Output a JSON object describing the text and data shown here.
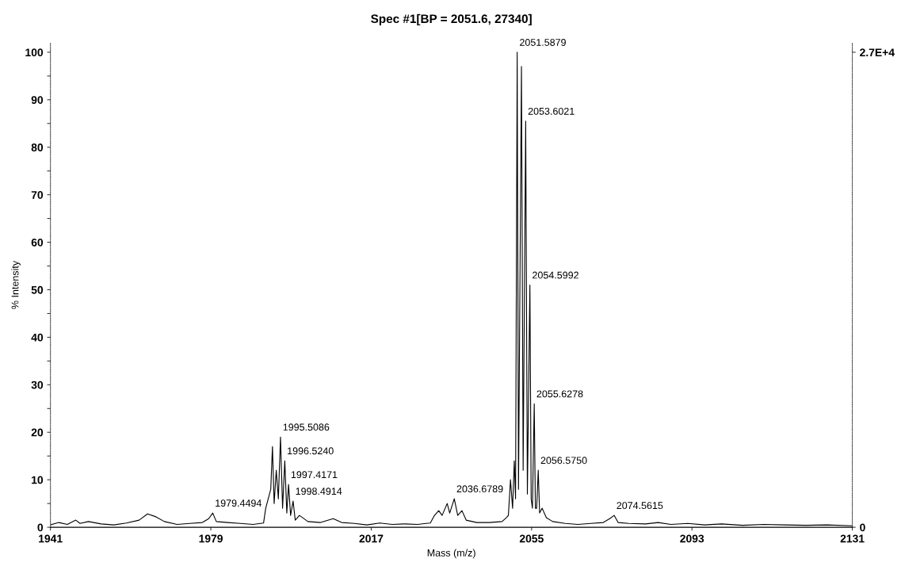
{
  "chart_data": {
    "type": "line",
    "title": "Spec #1[BP = 2051.6, 27340]",
    "xlabel": "Mass (m/z)",
    "ylabel": "% Intensity",
    "xlim": [
      1941,
      2131
    ],
    "xticks": [
      1941,
      1979,
      2017,
      2055,
      2093,
      2131
    ],
    "ylim": [
      0,
      102
    ],
    "yticks": [
      0,
      {
        "value": 5,
        "label": null
      },
      10,
      {
        "value": 15,
        "label": null
      },
      20,
      {
        "value": 25,
        "label": null
      },
      30,
      {
        "value": 35,
        "label": null
      },
      40,
      {
        "value": 45,
        "label": null
      },
      50,
      {
        "value": 55,
        "label": null
      },
      60,
      {
        "value": 65,
        "label": null
      },
      70,
      {
        "value": 75,
        "label": null
      },
      80,
      {
        "value": 85,
        "label": null
      },
      90,
      {
        "value": 95,
        "label": null
      },
      100
    ],
    "y2lim": [
      0,
      27887
    ],
    "y2ticks": [
      0,
      {
        "value": 27340,
        "label": "2.7E+4"
      }
    ],
    "grid": false,
    "marker": "none",
    "line_style": "solid",
    "series": [
      {
        "color": "#000000",
        "x": [
          1941,
          1943,
          1945,
          1947,
          1948,
          1950,
          1953,
          1956,
          1959,
          1962,
          1964,
          1966,
          1968,
          1971,
          1974,
          1977,
          1978.5,
          1979.4494,
          1980.3,
          1983,
          1986,
          1989,
          1991.5,
          1992,
          1993.2,
          1993.6,
          1994.0,
          1994.5,
          1995.0,
          1995.5086,
          1996.0,
          1996.524,
          1997.0,
          1997.4171,
          1997.9,
          1998.4914,
          1999,
          2000,
          2002,
          2005,
          2008,
          2010,
          2013,
          2016,
          2019,
          2022,
          2025,
          2028,
          2030,
          2031,
          2032,
          2033,
          2033.8,
          2035,
          2035.6,
          2036.6789,
          2037.5,
          2038.5,
          2039.5,
          2042,
          2045,
          2048,
          2049,
          2049.5,
          2050,
          2050.5,
          2050.9,
          2051.2,
          2051.5879,
          2051.9,
          2052.6,
          2053.0,
          2053.6021,
          2054.0,
          2054.5992,
          2054.9,
          2055.2,
          2055.6278,
          2055.9,
          2056.2,
          2056.575,
          2056.9,
          2057.5,
          2058.5,
          2060,
          2063,
          2066,
          2069,
          2072,
          2073.5,
          2074.5615,
          2075.5,
          2078,
          2082,
          2085,
          2088,
          2092,
          2096,
          2100,
          2105,
          2110,
          2115,
          2120,
          2125,
          2131
        ],
        "values": [
          0.5,
          1.0,
          0.6,
          1.5,
          0.8,
          1.2,
          0.7,
          0.5,
          0.9,
          1.5,
          2.8,
          2.2,
          1.2,
          0.6,
          0.8,
          1.0,
          1.8,
          3.0,
          1.2,
          1.0,
          0.8,
          0.6,
          0.9,
          4,
          8,
          17,
          5,
          12,
          6,
          19,
          4,
          14,
          3,
          9,
          2.5,
          5.5,
          1.5,
          2.5,
          1.2,
          1.0,
          1.8,
          1.0,
          0.8,
          0.5,
          0.9,
          0.6,
          0.7,
          0.6,
          0.8,
          0.9,
          2.5,
          3.5,
          2.5,
          5,
          3,
          6,
          2.5,
          3.5,
          1.5,
          1.0,
          1.0,
          1.2,
          2.0,
          2.5,
          10,
          4,
          14,
          6,
          100,
          8,
          97,
          12,
          85.5,
          7,
          51,
          6,
          4,
          26,
          4,
          4,
          12,
          3,
          4,
          2,
          1.2,
          0.8,
          0.6,
          0.8,
          1.0,
          1.8,
          2.5,
          1.0,
          0.8,
          0.7,
          1.0,
          0.6,
          0.8,
          0.5,
          0.7,
          0.4,
          0.6,
          0.5,
          0.4,
          0.5,
          0.3
        ]
      }
    ],
    "annotations": [
      {
        "text": "1979.4494",
        "x": 1979.4494,
        "y": 3.0
      },
      {
        "text": "1995.5086",
        "x": 1995.5086,
        "y": 19
      },
      {
        "text": "1996.5240",
        "x": 1996.524,
        "y": 14
      },
      {
        "text": "1997.4171",
        "x": 1997.4171,
        "y": 9
      },
      {
        "text": "1998.4914",
        "x": 1998.4914,
        "y": 5.5
      },
      {
        "text": "2036.6789",
        "x": 2036.6789,
        "y": 6
      },
      {
        "text": "2051.5879",
        "x": 2051.5879,
        "y": 100
      },
      {
        "text": "2053.6021",
        "x": 2053.6021,
        "y": 85.5
      },
      {
        "text": "2054.5992",
        "x": 2054.5992,
        "y": 51
      },
      {
        "text": "2055.6278",
        "x": 2055.6278,
        "y": 26
      },
      {
        "text": "2056.5750",
        "x": 2056.575,
        "y": 12
      },
      {
        "text": "2074.5615",
        "x": 2074.5615,
        "y": 2.5
      }
    ]
  }
}
